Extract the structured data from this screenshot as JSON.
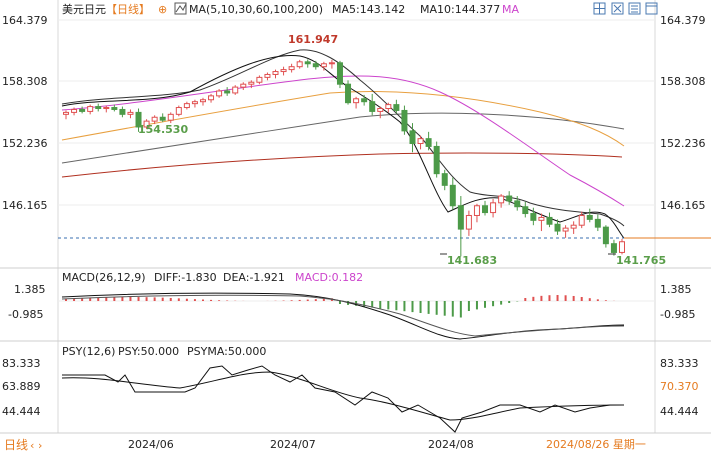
{
  "header": {
    "symbol": "美元日元",
    "period": "【日线】",
    "plus": "⊕",
    "ma_label": "MA(5,10,30,60,100,200)",
    "ma5": "MA5:143.142",
    "ma10": "MA10:144.377",
    "ma_more": "MA"
  },
  "toolbar": {
    "icons": [
      "grid-icon",
      "hide-icon",
      "settings-icon",
      "window-icon"
    ]
  },
  "main_axis": {
    "ticks": [
      "164.379",
      "158.308",
      "152.236",
      "146.165"
    ]
  },
  "annotations": {
    "high": "161.947",
    "low_jul": "154.530",
    "low_aug": "141.683",
    "last_low": "141.765"
  },
  "macd": {
    "title": "MACD(26,12,9)",
    "diff": "DIFF:-1.830",
    "dea": "DEA:-1.921",
    "macd": "MACD:0.182",
    "ticks": [
      "1.385",
      "-0.985"
    ]
  },
  "psy": {
    "title": "PSY(12,6)",
    "psy": "PSY:50.000",
    "psyma": "PSYMA:50.000",
    "ticks": [
      "83.333",
      "63.889",
      "44.444"
    ],
    "right_label": "70.370"
  },
  "footer": {
    "period": "日线",
    "dates": [
      "2024/06",
      "2024/07",
      "2024/08"
    ],
    "current_date": "2024/08/26 星期一"
  },
  "colors": {
    "up": "#e05050",
    "down": "#4c9a48",
    "ma5": "#111111",
    "ma10": "#333333",
    "ma30": "#cc44cc",
    "ma60": "#e8a040",
    "ma100": "#666666",
    "ma200": "#b03020",
    "accent": "#e57b20",
    "label_green": "#5a9e4a"
  },
  "chart_data": {
    "type": "candlestick",
    "ylim": [
      140.5,
      166.0
    ],
    "candles": [
      [
        156.3,
        156.7,
        155.8,
        156.5
      ],
      [
        156.5,
        157.0,
        156.2,
        156.8
      ],
      [
        156.8,
        157.1,
        156.4,
        156.6
      ],
      [
        156.6,
        157.3,
        156.3,
        157.1
      ],
      [
        157.1,
        157.4,
        156.6,
        156.9
      ],
      [
        156.9,
        157.2,
        156.5,
        157.0
      ],
      [
        157.0,
        157.3,
        156.6,
        156.8
      ],
      [
        156.8,
        157.1,
        156.0,
        156.3
      ],
      [
        156.3,
        156.8,
        155.9,
        156.5
      ],
      [
        156.5,
        156.9,
        154.5,
        155.0
      ],
      [
        155.0,
        155.8,
        154.8,
        155.6
      ],
      [
        155.6,
        156.2,
        155.3,
        156.0
      ],
      [
        156.0,
        156.4,
        155.5,
        155.7
      ],
      [
        155.7,
        156.5,
        155.4,
        156.3
      ],
      [
        156.3,
        157.2,
        156.1,
        157.0
      ],
      [
        157.0,
        157.6,
        156.8,
        157.4
      ],
      [
        157.4,
        157.8,
        157.0,
        157.6
      ],
      [
        157.6,
        158.0,
        157.2,
        157.8
      ],
      [
        157.8,
        158.4,
        157.5,
        158.2
      ],
      [
        158.2,
        158.9,
        158.0,
        158.7
      ],
      [
        158.7,
        159.1,
        158.2,
        158.5
      ],
      [
        158.5,
        159.3,
        158.3,
        159.1
      ],
      [
        159.1,
        159.6,
        158.8,
        159.4
      ],
      [
        159.4,
        159.8,
        159.0,
        159.6
      ],
      [
        159.6,
        160.3,
        159.4,
        160.1
      ],
      [
        160.1,
        160.6,
        159.8,
        160.4
      ],
      [
        160.4,
        160.9,
        160.0,
        160.7
      ],
      [
        160.7,
        161.2,
        160.3,
        160.9
      ],
      [
        160.9,
        161.5,
        160.6,
        161.2
      ],
      [
        161.2,
        161.9,
        161.0,
        161.7
      ],
      [
        161.7,
        161.95,
        161.1,
        161.5
      ],
      [
        161.5,
        161.8,
        160.9,
        161.2
      ],
      [
        161.2,
        161.7,
        160.8,
        161.5
      ],
      [
        161.5,
        161.9,
        161.0,
        161.6
      ],
      [
        161.6,
        161.8,
        159.0,
        159.4
      ],
      [
        159.4,
        159.8,
        157.3,
        157.5
      ],
      [
        157.5,
        158.1,
        156.9,
        157.9
      ],
      [
        157.9,
        158.3,
        157.2,
        157.6
      ],
      [
        157.6,
        158.4,
        156.2,
        156.6
      ],
      [
        156.6,
        157.1,
        155.9,
        156.9
      ],
      [
        156.9,
        157.5,
        156.5,
        157.3
      ],
      [
        157.3,
        157.8,
        156.4,
        156.7
      ],
      [
        156.7,
        157.2,
        154.2,
        154.6
      ],
      [
        154.6,
        155.4,
        152.4,
        153.3
      ],
      [
        153.3,
        154.1,
        152.7,
        153.8
      ],
      [
        153.8,
        154.5,
        152.6,
        153.0
      ],
      [
        153.0,
        153.5,
        149.8,
        150.2
      ],
      [
        150.2,
        150.6,
        148.5,
        149.0
      ],
      [
        149.0,
        149.8,
        146.5,
        146.9
      ],
      [
        146.9,
        147.9,
        141.7,
        144.5
      ],
      [
        144.5,
        146.4,
        143.8,
        145.9
      ],
      [
        145.9,
        147.1,
        145.2,
        146.9
      ],
      [
        146.9,
        147.4,
        145.9,
        146.2
      ],
      [
        146.2,
        147.6,
        145.7,
        147.2
      ],
      [
        147.2,
        148.1,
        146.7,
        147.9
      ],
      [
        147.9,
        148.4,
        147.0,
        147.4
      ],
      [
        147.4,
        147.9,
        146.4,
        146.8
      ],
      [
        146.8,
        147.3,
        145.7,
        146.1
      ],
      [
        146.1,
        146.7,
        144.9,
        145.4
      ],
      [
        145.4,
        146.1,
        144.3,
        145.7
      ],
      [
        145.7,
        146.2,
        144.7,
        145.0
      ],
      [
        145.0,
        145.5,
        143.9,
        144.3
      ],
      [
        144.3,
        144.9,
        143.6,
        144.6
      ],
      [
        144.6,
        145.3,
        144.0,
        144.9
      ],
      [
        144.9,
        146.3,
        144.6,
        145.9
      ],
      [
        145.9,
        146.6,
        145.2,
        145.5
      ],
      [
        145.5,
        146.0,
        144.3,
        144.7
      ],
      [
        144.7,
        144.9,
        142.6,
        143.0
      ],
      [
        143.0,
        143.4,
        141.77,
        142.1
      ],
      [
        142.1,
        143.5,
        141.9,
        143.2
      ]
    ]
  }
}
